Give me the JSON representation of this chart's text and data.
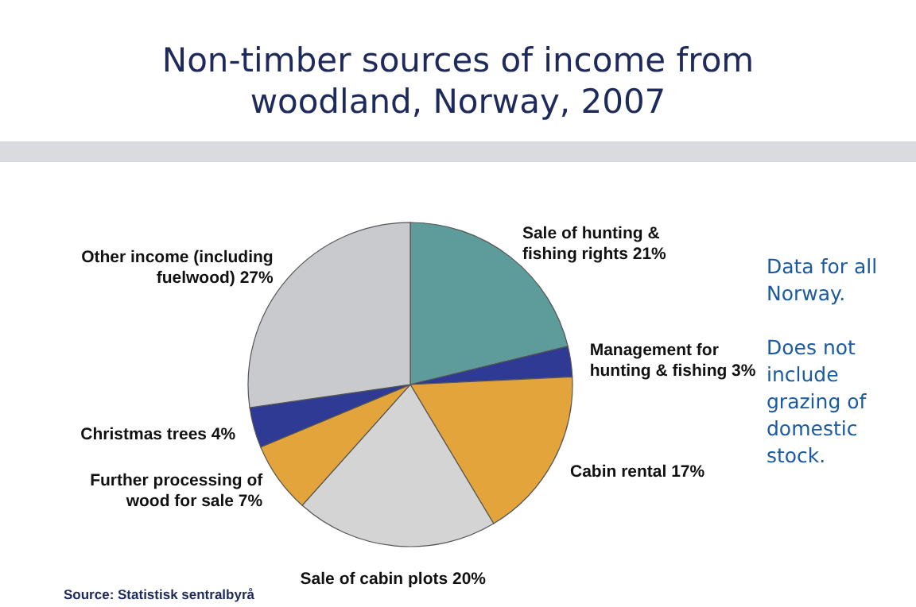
{
  "chart_data": {
    "type": "pie",
    "title": "Non-timber sources of income from woodland, Norway, 2007",
    "categories": [
      "Sale of hunting & fishing rights",
      "Management for hunting & fishing",
      "Cabin rental",
      "Sale of cabin plots",
      "Further processing of wood for sale",
      "Christmas trees",
      "Other income (including fuelwood)"
    ],
    "values": [
      21,
      3,
      17,
      20,
      7,
      4,
      27
    ],
    "value_labels": [
      "21%",
      "3%",
      "17%",
      "20%",
      "7%",
      "4%",
      "27%"
    ],
    "colors": [
      "#5e9c9b",
      "#2e3a93",
      "#e3a43c",
      "#d4d4d4",
      "#e3a43c",
      "#2e3a93",
      "#c9cacd"
    ],
    "annotations": [
      "Data for all Norway.",
      "Does not include grazing of domestic stock.",
      "Source: Statistisk sentralbyrå"
    ]
  }
}
